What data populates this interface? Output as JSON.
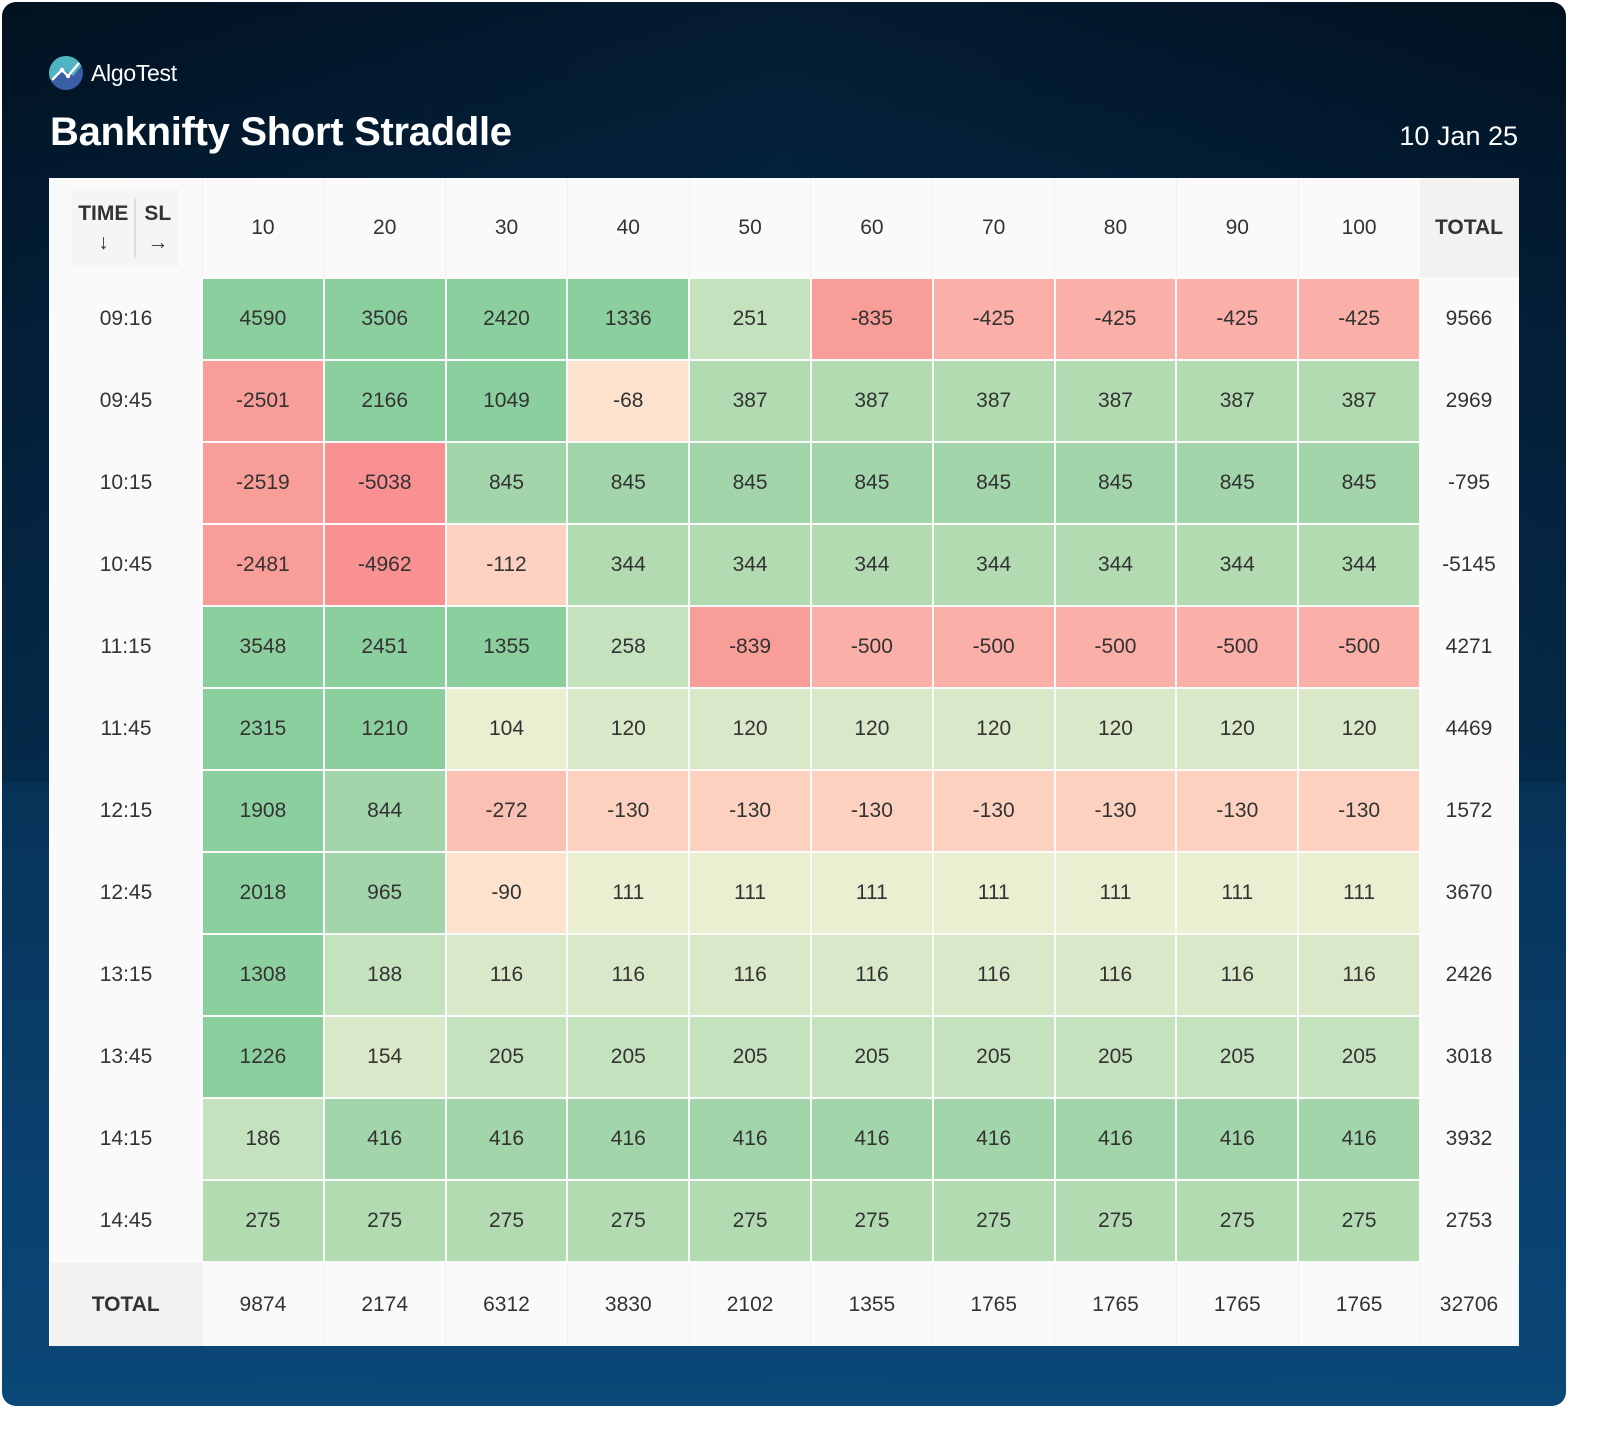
{
  "brand": {
    "name": "AlgoTest",
    "logo_icon": "algotest-logo-icon"
  },
  "header": {
    "title": "Banknifty Short Straddle",
    "date": "10 Jan 25"
  },
  "colors": {
    "strong_green": "#8ccf9f",
    "mid_green": "#a2d5aa",
    "light_green": "#b2dbb2",
    "pale_green": "#c5e2bf",
    "very_pale_green": "#d9e8c8",
    "cream": "#ebefd1",
    "peach": "#fde2cd",
    "light_salmon": "#fdd1c0",
    "salmon": "#fbc0b4",
    "red_light": "#fab0a8",
    "red": "#f99d99",
    "red_strong": "#f99192"
  },
  "chart_data": {
    "type": "heatmap",
    "title": "Banknifty Short Straddle",
    "subtitle": "10 Jan 25",
    "corner_label": {
      "row_axis": "TIME",
      "row_arrow": "↓",
      "col_axis": "SL",
      "col_arrow": "→"
    },
    "xlabel": "SL",
    "ylabel": "TIME",
    "columns": [
      "10",
      "20",
      "30",
      "40",
      "50",
      "60",
      "70",
      "80",
      "90",
      "100"
    ],
    "total_label": "TOTAL",
    "rows": [
      {
        "time": "09:16",
        "values": [
          4590,
          3506,
          2420,
          1336,
          251,
          -835,
          -425,
          -425,
          -425,
          -425
        ],
        "total": 9566
      },
      {
        "time": "09:45",
        "values": [
          -2501,
          2166,
          1049,
          -68,
          387,
          387,
          387,
          387,
          387,
          387
        ],
        "total": 2969
      },
      {
        "time": "10:15",
        "values": [
          -2519,
          -5038,
          845,
          845,
          845,
          845,
          845,
          845,
          845,
          845
        ],
        "total": -795
      },
      {
        "time": "10:45",
        "values": [
          -2481,
          -4962,
          -112,
          344,
          344,
          344,
          344,
          344,
          344,
          344
        ],
        "total": -5145
      },
      {
        "time": "11:15",
        "values": [
          3548,
          2451,
          1355,
          258,
          -839,
          -500,
          -500,
          -500,
          -500,
          -500
        ],
        "total": 4271
      },
      {
        "time": "11:45",
        "values": [
          2315,
          1210,
          104,
          120,
          120,
          120,
          120,
          120,
          120,
          120
        ],
        "total": 4469
      },
      {
        "time": "12:15",
        "values": [
          1908,
          844,
          -272,
          -130,
          -130,
          -130,
          -130,
          -130,
          -130,
          -130
        ],
        "total": 1572
      },
      {
        "time": "12:45",
        "values": [
          2018,
          965,
          -90,
          111,
          111,
          111,
          111,
          111,
          111,
          111
        ],
        "total": 3670
      },
      {
        "time": "13:15",
        "values": [
          1308,
          188,
          116,
          116,
          116,
          116,
          116,
          116,
          116,
          116
        ],
        "total": 2426
      },
      {
        "time": "13:45",
        "values": [
          1226,
          154,
          205,
          205,
          205,
          205,
          205,
          205,
          205,
          205
        ],
        "total": 3018
      },
      {
        "time": "14:15",
        "values": [
          186,
          416,
          416,
          416,
          416,
          416,
          416,
          416,
          416,
          416
        ],
        "total": 3932
      },
      {
        "time": "14:45",
        "values": [
          275,
          275,
          275,
          275,
          275,
          275,
          275,
          275,
          275,
          275
        ],
        "total": 2753
      }
    ],
    "column_totals": [
      9874,
      2174,
      6312,
      3830,
      2102,
      1355,
      1765,
      1765,
      1765,
      1765
    ],
    "grand_total": 32706
  }
}
